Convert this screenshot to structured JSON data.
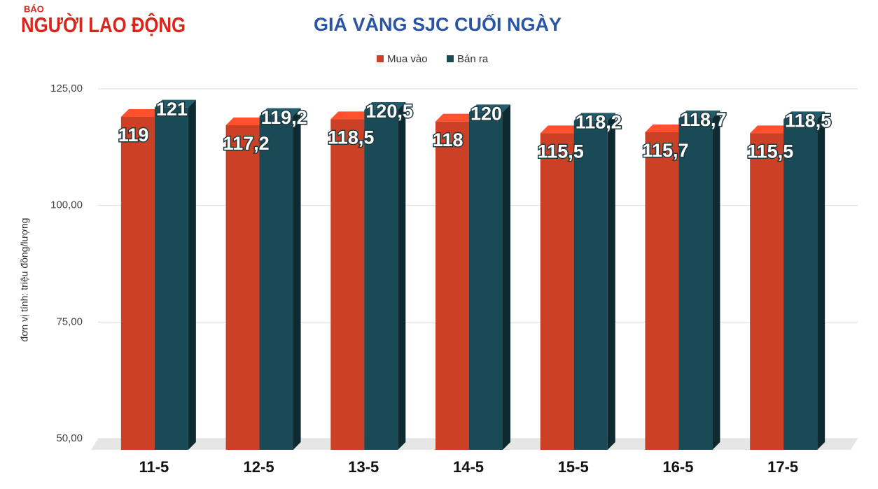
{
  "logo": {
    "small": "BÁO",
    "name": "NGƯỜI LAO ĐỘNG"
  },
  "chart_data": {
    "type": "bar",
    "title": "GIÁ VÀNG SJC CUỐI NGÀY",
    "y_label": "đơn vị tính: triệu đồng/lượng",
    "categories": [
      "11-5",
      "12-5",
      "13-5",
      "14-5",
      "15-5",
      "16-5",
      "17-5"
    ],
    "series": [
      {
        "name": "Mua vào",
        "color": "#cc4125",
        "values": [
          119,
          117.2,
          118.5,
          118,
          115.5,
          115.7,
          115.5
        ],
        "value_labels": [
          "119",
          "117,2",
          "118,5",
          "118",
          "115,5",
          "115,7",
          "115,5"
        ]
      },
      {
        "name": "Bán ra",
        "color": "#1a4a56",
        "values": [
          121,
          119.2,
          120.5,
          120,
          118.2,
          118.7,
          118.5
        ],
        "value_labels": [
          "121",
          "119,2",
          "120,5",
          "120",
          "118,2",
          "118,7",
          "118,5"
        ]
      }
    ],
    "ylim": [
      50,
      125
    ],
    "yticks": [
      {
        "value": 50,
        "label": "50,00"
      },
      {
        "value": 75,
        "label": "75,00"
      },
      {
        "value": 100,
        "label": "100,00"
      },
      {
        "value": 125,
        "label": "125,00"
      }
    ],
    "grid": true,
    "legend": "top"
  }
}
